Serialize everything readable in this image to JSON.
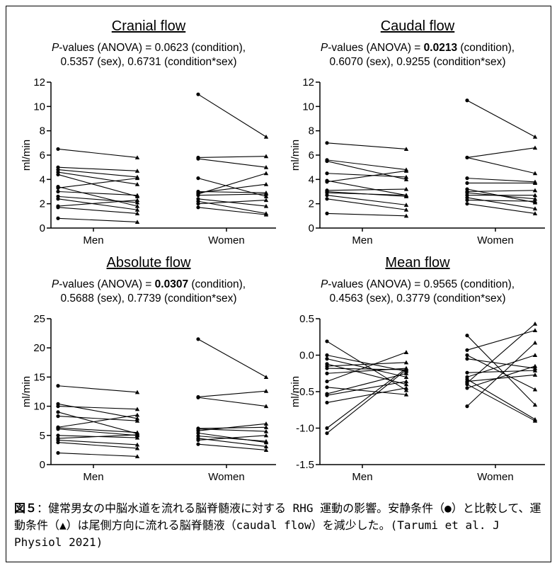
{
  "panels": [
    {
      "title": "Cranial flow",
      "pv_label": "P",
      "sub1_pre": "-values (ANOVA) = 0.0623 (condition),",
      "sub1_bold": "",
      "sub1_post": "",
      "sub2": "0.5357 (sex), 0.6731 (condition*sex)"
    },
    {
      "title": "Caudal flow",
      "pv_label": "P",
      "sub1_pre": "-values (ANOVA) = ",
      "sub1_bold": "0.0213",
      "sub1_post": " (condition),",
      "sub2": "0.6070 (sex), 0.9255 (condition*sex)"
    },
    {
      "title": "Absolute flow",
      "pv_label": "P",
      "sub1_pre": "-values (ANOVA) = ",
      "sub1_bold": "0.0307",
      "sub1_post": " (condition),",
      "sub2": "0.5688 (sex), 0.7739 (condition*sex)"
    },
    {
      "title": "Mean flow",
      "pv_label": "P",
      "sub1_pre": "-values (ANOVA) = 0.9565 (condition),",
      "sub1_bold": "",
      "sub1_post": "",
      "sub2": "0.4563 (sex), 0.3779 (condition*sex)"
    }
  ],
  "caption": {
    "fig_label": "図５",
    "text": "：健常男女の中脳水道を流れる脳脊髄液に対する RHG 運動の影響。安静条件（●）と比較して、運動条件（▲）は尾側方向に流れる脳脊髄液（caudal flow）を減少した。(Tarumi et al. J Physiol 2021)"
  },
  "chart_data": [
    {
      "type": "scatter",
      "title": "Cranial flow",
      "ylabel": "ml/min",
      "ylim": [
        0,
        12
      ],
      "yticks": [
        "0",
        "2",
        "4",
        "6",
        "8",
        "10",
        "12"
      ],
      "ytick_values": [
        0,
        2,
        4,
        6,
        8,
        10,
        12
      ],
      "categories": [
        "Men",
        "Women"
      ],
      "series": [
        {
          "group": "Men",
          "pairs": [
            [
              0.8,
              0.5
            ],
            [
              1.7,
              1.2
            ],
            [
              1.8,
              2.3
            ],
            [
              2.4,
              1.5
            ],
            [
              2.6,
              2.1
            ],
            [
              3.0,
              2.7
            ],
            [
              3.3,
              4.1
            ],
            [
              3.4,
              1.8
            ],
            [
              4.4,
              2.6
            ],
            [
              4.6,
              3.6
            ],
            [
              4.8,
              4.2
            ],
            [
              5.0,
              4.7
            ],
            [
              6.5,
              5.8
            ]
          ]
        },
        {
          "group": "Women",
          "pairs": [
            [
              1.7,
              1.1
            ],
            [
              2.0,
              2.3
            ],
            [
              2.2,
              1.2
            ],
            [
              2.4,
              1.8
            ],
            [
              2.7,
              2.8
            ],
            [
              2.8,
              4.5
            ],
            [
              2.9,
              3.6
            ],
            [
              3.0,
              2.9
            ],
            [
              4.1,
              2.6
            ],
            [
              5.7,
              5.0
            ],
            [
              5.8,
              5.9
            ],
            [
              11.0,
              7.5
            ]
          ]
        }
      ]
    },
    {
      "type": "scatter",
      "title": "Caudal flow",
      "ylabel": "ml/min",
      "ylim": [
        0,
        12
      ],
      "yticks": [
        "0",
        "2",
        "4",
        "6",
        "8",
        "10",
        "12"
      ],
      "ytick_values": [
        0,
        2,
        4,
        6,
        8,
        10,
        12
      ],
      "categories": [
        "Men",
        "Women"
      ],
      "series": [
        {
          "group": "Men",
          "pairs": [
            [
              1.2,
              1.0
            ],
            [
              2.4,
              1.5
            ],
            [
              2.7,
              1.9
            ],
            [
              2.9,
              2.7
            ],
            [
              3.0,
              2.6
            ],
            [
              3.1,
              3.2
            ],
            [
              3.8,
              4.7
            ],
            [
              3.9,
              2.7
            ],
            [
              4.5,
              4.2
            ],
            [
              5.5,
              4.0
            ],
            [
              5.6,
              4.8
            ],
            [
              7.0,
              6.5
            ]
          ]
        },
        {
          "group": "Women",
          "pairs": [
            [
              2.0,
              1.2
            ],
            [
              2.3,
              2.2
            ],
            [
              2.5,
              1.6
            ],
            [
              2.7,
              2.7
            ],
            [
              2.9,
              2.4
            ],
            [
              3.0,
              3.1
            ],
            [
              3.2,
              2.1
            ],
            [
              3.7,
              3.7
            ],
            [
              4.1,
              3.8
            ],
            [
              5.8,
              4.5
            ],
            [
              5.8,
              6.6
            ],
            [
              10.5,
              7.5
            ]
          ]
        }
      ]
    },
    {
      "type": "scatter",
      "title": "Absolute flow",
      "ylabel": "ml/min",
      "ylim": [
        0,
        25
      ],
      "yticks": [
        "0",
        "5",
        "10",
        "15",
        "20",
        "25"
      ],
      "ytick_values": [
        0,
        5,
        10,
        15,
        20,
        25
      ],
      "categories": [
        "Men",
        "Women"
      ],
      "series": [
        {
          "group": "Men",
          "pairs": [
            [
              2.0,
              1.4
            ],
            [
              3.8,
              2.8
            ],
            [
              4.2,
              3.4
            ],
            [
              4.5,
              5.1
            ],
            [
              5.0,
              4.6
            ],
            [
              6.1,
              5.0
            ],
            [
              6.3,
              5.5
            ],
            [
              6.4,
              8.5
            ],
            [
              8.3,
              7.5
            ],
            [
              9.0,
              5.3
            ],
            [
              10.0,
              9.5
            ],
            [
              10.4,
              7.9
            ],
            [
              13.5,
              12.4
            ]
          ]
        },
        {
          "group": "Women",
          "pairs": [
            [
              3.5,
              2.5
            ],
            [
              4.2,
              5.0
            ],
            [
              4.5,
              3.1
            ],
            [
              4.9,
              4.0
            ],
            [
              5.4,
              3.8
            ],
            [
              5.8,
              7.0
            ],
            [
              6.1,
              5.7
            ],
            [
              6.2,
              6.4
            ],
            [
              11.5,
              10.0
            ],
            [
              11.6,
              12.6
            ],
            [
              21.5,
              15.0
            ]
          ]
        }
      ]
    },
    {
      "type": "scatter",
      "title": "Mean flow",
      "ylabel": "ml/min",
      "ylim": [
        -1.5,
        0.5
      ],
      "yticks": [
        "-1.5",
        "-1.0",
        "-0.5",
        "0.0",
        "0.5"
      ],
      "ytick_values": [
        -1.5,
        -1.0,
        -0.5,
        0.0,
        0.5
      ],
      "categories": [
        "Men",
        "Women"
      ],
      "series": [
        {
          "group": "Men",
          "pairs": [
            [
              0.19,
              -0.48
            ],
            [
              0.0,
              -0.22
            ],
            [
              -0.05,
              -0.3
            ],
            [
              -0.12,
              -0.4
            ],
            [
              -0.15,
              -0.1
            ],
            [
              -0.18,
              -0.2
            ],
            [
              -0.25,
              -0.18
            ],
            [
              -0.36,
              0.04
            ],
            [
              -0.44,
              -0.54
            ],
            [
              -0.53,
              -0.25
            ],
            [
              -0.55,
              -0.36
            ],
            [
              -0.65,
              -0.45
            ],
            [
              -1.0,
              -0.18
            ],
            [
              -1.07,
              -0.2
            ]
          ]
        },
        {
          "group": "Women",
          "pairs": [
            [
              0.27,
              -0.68
            ],
            [
              0.07,
              0.34
            ],
            [
              0.0,
              -0.47
            ],
            [
              -0.05,
              -0.18
            ],
            [
              -0.24,
              -0.21
            ],
            [
              -0.3,
              0.0
            ],
            [
              -0.33,
              -0.88
            ],
            [
              -0.36,
              -0.27
            ],
            [
              -0.38,
              0.43
            ],
            [
              -0.4,
              -0.9
            ],
            [
              -0.45,
              -0.15
            ],
            [
              -0.7,
              0.17
            ]
          ]
        }
      ]
    }
  ]
}
